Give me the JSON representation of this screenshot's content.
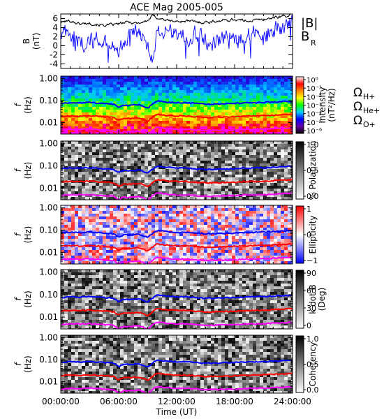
{
  "chart_data": {
    "title": "ACE Mag 2005-005",
    "xlabel": "Time (UT)",
    "x_ticks": [
      "00:00:00",
      "06:00:00",
      "12:00:00",
      "18:00:00",
      "24:00:00"
    ],
    "x_range_hours": [
      0,
      24
    ],
    "panels": [
      {
        "type": "line",
        "ylabel": "B",
        "ylabel_unit": "(nT)",
        "ylim": [
          -5,
          7
        ],
        "y_ticks": [
          -4,
          -2,
          0,
          2,
          4,
          6
        ],
        "series": [
          {
            "name": "|B|",
            "color": "#000000",
            "x": [
              0,
              1,
              2,
              3,
              4,
              5,
              6,
              7,
              8,
              9,
              9.5,
              10,
              11,
              12,
              13,
              14,
              15,
              16,
              17,
              18,
              19,
              20,
              21,
              22,
              23,
              24
            ],
            "y": [
              5.2,
              5.5,
              4.8,
              5.0,
              4.6,
              4.5,
              4.8,
              5.2,
              5.0,
              5.5,
              6.6,
              6.2,
              5.6,
              5.3,
              5.5,
              5.2,
              5.2,
              5.4,
              5.6,
              5.8,
              5.5,
              5.6,
              5.8,
              6.2,
              6.5,
              6.8
            ]
          },
          {
            "name": "B",
            "subscript": "R",
            "color": "#0000ff",
            "x": [
              0,
              1,
              2,
              3,
              4,
              5,
              6,
              7,
              8,
              9,
              9.5,
              10,
              11,
              12,
              13,
              14,
              15,
              16,
              17,
              18,
              19,
              20,
              21,
              22,
              23,
              24
            ],
            "y": [
              3.5,
              2.0,
              1.0,
              0.0,
              1.5,
              0.5,
              -1.0,
              2.5,
              3.0,
              0.5,
              -2.5,
              3.5,
              3.0,
              2.5,
              2.0,
              2.5,
              1.0,
              0.5,
              2.0,
              1.0,
              2.5,
              3.0,
              2.5,
              3.5,
              4.0,
              5.0
            ]
          }
        ]
      },
      {
        "type": "heatmap",
        "ylabel": "f",
        "ylabel_unit": "(Hz)",
        "ylim": [
          0.003,
          1.3
        ],
        "yscale": "log",
        "y_ticks": [
          1.0,
          0.1,
          0.01
        ],
        "y_tick_labels": [
          "1.00",
          "0.10",
          "0.01"
        ],
        "colorbar_label": "Intensity",
        "colorbar_unit": "(nT²/Hz)",
        "colorbar_scale": "log",
        "colorbar_ticks": [
          "10⁰",
          "10⁻¹",
          "10⁻²",
          "10⁻³",
          "10⁻⁴",
          "10⁻⁵",
          "10⁻⁶"
        ],
        "colorbar_colors": [
          "#ffffff",
          "#ff0000",
          "#ff8800",
          "#ffff00",
          "#00ff00",
          "#00ccff",
          "#0000ff",
          "#6600aa",
          "#000000"
        ]
      },
      {
        "type": "heatmap",
        "ylabel": "f",
        "ylabel_unit": "(Hz)",
        "ylim": [
          0.003,
          1.3
        ],
        "yscale": "log",
        "y_ticks": [
          1.0,
          0.1,
          0.01
        ],
        "y_tick_labels": [
          "1.00",
          "0.10",
          "0.01"
        ],
        "colorbar_label": "% Polarization",
        "colorbar_ticks": [
          "1.0",
          "0.5",
          "0.0"
        ],
        "colorbar_colors": [
          "#000000",
          "#ffffff"
        ]
      },
      {
        "type": "heatmap",
        "ylabel": "f",
        "ylabel_unit": "(Hz)",
        "ylim": [
          0.003,
          1.3
        ],
        "yscale": "log",
        "y_ticks": [
          1.0,
          0.1,
          0.01
        ],
        "y_tick_labels": [
          "1.00",
          "0.10",
          "0.01"
        ],
        "colorbar_label": "Ellipticity",
        "colorbar_ticks": [
          "1",
          "0",
          "−1"
        ],
        "colorbar_colors": [
          "#ff0000",
          "#ffffff",
          "#0000ff"
        ]
      },
      {
        "type": "heatmap",
        "ylabel": "f",
        "ylabel_unit": "(Hz)",
        "ylim": [
          0.003,
          1.3
        ],
        "yscale": "log",
        "y_ticks": [
          1.0,
          0.1,
          0.01
        ],
        "y_tick_labels": [
          "1.00",
          "0.10",
          "0.01"
        ],
        "colorbar_label": "k dot B",
        "colorbar_unit": "(Deg)",
        "colorbar_ticks": [
          "90",
          "60",
          "30",
          "0"
        ],
        "colorbar_colors": [
          "#000000",
          "#ffffff"
        ]
      },
      {
        "type": "heatmap",
        "ylabel": "f",
        "ylabel_unit": "(Hz)",
        "ylim": [
          0.003,
          1.3
        ],
        "yscale": "log",
        "y_ticks": [
          1.0,
          0.1,
          0.01
        ],
        "y_tick_labels": [
          "1.00",
          "0.10",
          "0.01"
        ],
        "colorbar_label": "Coherency",
        "colorbar_ticks": [
          "1.0",
          "0.5",
          "0.0"
        ],
        "colorbar_colors": [
          "#000000",
          "#ffffff"
        ]
      }
    ],
    "gyrofrequency_lines": {
      "x": [
        0,
        1,
        2,
        3,
        4,
        5,
        5.5,
        6,
        6.5,
        7,
        8,
        8.5,
        9,
        9.5,
        10,
        11,
        12,
        13,
        14,
        15,
        16,
        17,
        18,
        19,
        20,
        21,
        22,
        23,
        24
      ],
      "series": [
        {
          "name": "Ω",
          "subscript": "H+",
          "color": "#0000ff",
          "y": [
            0.075,
            0.08,
            0.078,
            0.082,
            0.076,
            0.072,
            0.068,
            0.048,
            0.062,
            0.06,
            0.065,
            0.058,
            0.045,
            0.07,
            0.095,
            0.085,
            0.08,
            0.08,
            0.074,
            0.068,
            0.07,
            0.072,
            0.074,
            0.078,
            0.08,
            0.082,
            0.086,
            0.09,
            0.095
          ]
        },
        {
          "name": "Ω",
          "subscript": "He+",
          "color": "#ff0000",
          "y": [
            0.019,
            0.02,
            0.0195,
            0.0205,
            0.019,
            0.018,
            0.017,
            0.012,
            0.0155,
            0.015,
            0.016,
            0.0145,
            0.011,
            0.0175,
            0.024,
            0.021,
            0.02,
            0.02,
            0.0185,
            0.017,
            0.0175,
            0.018,
            0.0185,
            0.0195,
            0.02,
            0.0205,
            0.0215,
            0.0225,
            0.024
          ]
        },
        {
          "name": "Ω",
          "subscript": "O+",
          "color": "#ff00ff",
          "y": [
            0.0047,
            0.005,
            0.0049,
            0.0051,
            0.0047,
            0.0045,
            0.0042,
            0.003,
            0.0039,
            0.0038,
            0.0041,
            0.0036,
            0.0028,
            0.0044,
            0.006,
            0.0053,
            0.005,
            0.005,
            0.0046,
            0.0043,
            0.0044,
            0.0045,
            0.0046,
            0.0049,
            0.005,
            0.0051,
            0.0054,
            0.0056,
            0.006
          ]
        }
      ]
    }
  }
}
